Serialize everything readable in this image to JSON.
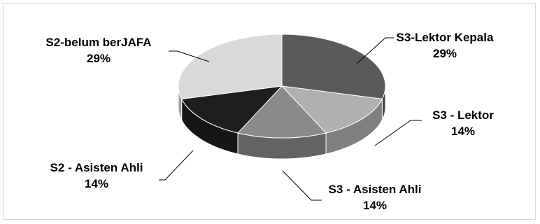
{
  "chart_data": {
    "type": "pie",
    "title": "",
    "style": "3d",
    "legend": "none",
    "slices": [
      {
        "label": "S3-Lektor Kepala",
        "value": 29,
        "value_label": "29%",
        "color": "#5a5a5a"
      },
      {
        "label": "S3 - Lektor",
        "value": 14,
        "value_label": "14%",
        "color": "#b0b0b0"
      },
      {
        "label": "S3 - Asisten Ahli",
        "value": 14,
        "value_label": "14%",
        "color": "#8a8a8a"
      },
      {
        "label": "S2 - Asisten Ahli",
        "value": 14,
        "value_label": "14%",
        "color": "#1e1e1e"
      },
      {
        "label": "S2-belum berJAFA",
        "value": 29,
        "value_label": "29%",
        "color": "#d9d9d9"
      }
    ]
  }
}
